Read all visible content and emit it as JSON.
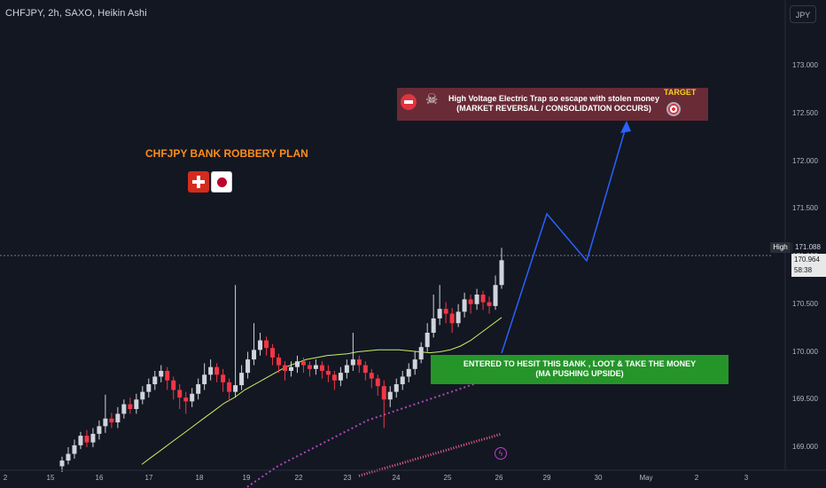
{
  "header": {
    "title": "CHFJPY, 2h, SAXO, Heikin Ashi",
    "currency_button": "JPY"
  },
  "annotations": {
    "plan_title": "CHFJPY BANK ROBBERY PLAN",
    "target_box_line1": "High Voltage Electric Trap so escape with stolen money",
    "target_box_line2": "(MARKET REVERSAL / CONSOLIDATION OCCURS)",
    "target_label": "TARGET",
    "entry_box_line1": "ENTERED TO HESIT THIS BANK , LOOT & TAKE THE MONEY",
    "entry_box_line2": "(MA PUSHING UPSIDE)"
  },
  "price_scale": {
    "high_tag": "High",
    "high_value": "171.088",
    "last_price": "170.964",
    "countdown": "58:38"
  },
  "colors": {
    "background": "#131722",
    "up_candle": "#d1d4dc",
    "down_candle": "#f23645",
    "ma_fast": "#c8f064",
    "ma_mid": "#b048b8",
    "ma_slow": "#f06090",
    "projection": "#2962ff",
    "target_box": "#692b36",
    "entry_box": "#25952a",
    "plan_title": "#ff8c1a"
  },
  "chart_data": {
    "type": "candlestick",
    "symbol": "CHFJPY",
    "timeframe": "2h",
    "source": "SAXO",
    "style": "Heikin Ashi",
    "y_axis": {
      "ticks": [
        169.0,
        169.5,
        170.0,
        170.5,
        171.0,
        171.5,
        172.0,
        172.5,
        173.0
      ],
      "tick_labels": [
        "169.000",
        "169.500",
        "170.000",
        "170.500",
        "171.000",
        "171.500",
        "172.000",
        "172.500",
        "173.000"
      ],
      "range": [
        168.8,
        173.4
      ]
    },
    "x_axis": {
      "tick_labels": [
        "2",
        "15",
        "16",
        "17",
        "18",
        "19",
        "22",
        "23",
        "24",
        "25",
        "26",
        "29",
        "30",
        "May",
        "2",
        "3"
      ]
    },
    "candles": [
      [
        168.8,
        168.86,
        168.74,
        168.9,
        "up"
      ],
      [
        168.86,
        168.93,
        168.82,
        169.0,
        "up"
      ],
      [
        168.93,
        169.02,
        168.88,
        169.08,
        "up"
      ],
      [
        169.02,
        169.12,
        168.98,
        169.16,
        "up"
      ],
      [
        169.12,
        169.05,
        169.0,
        169.18,
        "down"
      ],
      [
        169.05,
        169.14,
        169.0,
        169.2,
        "up"
      ],
      [
        169.14,
        169.22,
        169.08,
        169.28,
        "up"
      ],
      [
        169.22,
        169.3,
        169.15,
        169.55,
        "up"
      ],
      [
        169.3,
        169.26,
        169.2,
        169.36,
        "down"
      ],
      [
        169.26,
        169.35,
        169.2,
        169.42,
        "up"
      ],
      [
        169.35,
        169.45,
        169.3,
        169.5,
        "up"
      ],
      [
        169.45,
        169.4,
        169.35,
        169.52,
        "down"
      ],
      [
        169.4,
        169.5,
        169.35,
        169.56,
        "up"
      ],
      [
        169.5,
        169.58,
        169.45,
        169.64,
        "up"
      ],
      [
        169.58,
        169.66,
        169.52,
        169.72,
        "up"
      ],
      [
        169.66,
        169.74,
        169.6,
        169.8,
        "up"
      ],
      [
        169.74,
        169.8,
        169.68,
        169.86,
        "up"
      ],
      [
        169.8,
        169.7,
        169.6,
        169.84,
        "down"
      ],
      [
        169.7,
        169.6,
        169.5,
        169.74,
        "down"
      ],
      [
        169.6,
        169.52,
        169.4,
        169.66,
        "down"
      ],
      [
        169.52,
        169.48,
        169.35,
        169.58,
        "down"
      ],
      [
        169.48,
        169.56,
        169.42,
        169.62,
        "up"
      ],
      [
        169.56,
        169.66,
        169.5,
        169.72,
        "up"
      ],
      [
        169.66,
        169.76,
        169.6,
        169.88,
        "up"
      ],
      [
        169.76,
        169.84,
        169.7,
        169.92,
        "up"
      ],
      [
        169.84,
        169.76,
        169.68,
        169.88,
        "down"
      ],
      [
        169.76,
        169.68,
        169.58,
        169.82,
        "down"
      ],
      [
        169.68,
        169.58,
        169.48,
        169.72,
        "down"
      ],
      [
        169.58,
        169.65,
        169.52,
        170.7,
        "up"
      ],
      [
        169.65,
        169.78,
        169.6,
        169.86,
        "up"
      ],
      [
        169.78,
        169.92,
        169.72,
        170.0,
        "up"
      ],
      [
        169.92,
        170.02,
        169.86,
        170.3,
        "up"
      ],
      [
        170.02,
        170.12,
        169.96,
        170.2,
        "up"
      ],
      [
        170.12,
        170.04,
        169.96,
        170.16,
        "down"
      ],
      [
        170.04,
        169.94,
        169.86,
        170.08,
        "down"
      ],
      [
        169.94,
        169.86,
        169.78,
        169.98,
        "down"
      ],
      [
        169.86,
        169.8,
        169.7,
        169.9,
        "down"
      ],
      [
        169.8,
        169.84,
        169.74,
        169.9,
        "up"
      ],
      [
        169.84,
        169.9,
        169.78,
        169.96,
        "up"
      ],
      [
        169.9,
        169.86,
        169.78,
        169.94,
        "down"
      ],
      [
        169.86,
        169.82,
        169.74,
        169.9,
        "down"
      ],
      [
        169.82,
        169.86,
        169.76,
        169.92,
        "up"
      ],
      [
        169.86,
        169.8,
        169.72,
        169.9,
        "down"
      ],
      [
        169.8,
        169.76,
        169.68,
        169.86,
        "down"
      ],
      [
        169.76,
        169.7,
        169.6,
        169.8,
        "down"
      ],
      [
        169.7,
        169.78,
        169.64,
        169.84,
        "up"
      ],
      [
        169.78,
        169.86,
        169.72,
        169.92,
        "up"
      ],
      [
        169.86,
        169.92,
        169.8,
        170.2,
        "up"
      ],
      [
        169.92,
        169.86,
        169.78,
        169.96,
        "down"
      ],
      [
        169.86,
        169.78,
        169.7,
        169.9,
        "down"
      ],
      [
        169.78,
        169.72,
        169.62,
        169.82,
        "down"
      ],
      [
        169.72,
        169.64,
        169.54,
        169.76,
        "down"
      ],
      [
        169.64,
        169.5,
        169.2,
        169.7,
        "down"
      ],
      [
        169.5,
        169.58,
        169.42,
        169.64,
        "up"
      ],
      [
        169.58,
        169.66,
        169.52,
        169.72,
        "up"
      ],
      [
        169.66,
        169.74,
        169.6,
        169.8,
        "up"
      ],
      [
        169.74,
        169.82,
        169.68,
        169.88,
        "up"
      ],
      [
        169.82,
        169.92,
        169.76,
        170.0,
        "up"
      ],
      [
        169.92,
        170.05,
        169.88,
        170.1,
        "up"
      ],
      [
        170.05,
        170.2,
        170.0,
        170.3,
        "up"
      ],
      [
        170.2,
        170.35,
        170.15,
        170.6,
        "up"
      ],
      [
        170.35,
        170.45,
        170.28,
        170.7,
        "up"
      ],
      [
        170.45,
        170.4,
        170.3,
        170.52,
        "down"
      ],
      [
        170.4,
        170.3,
        170.2,
        170.46,
        "down"
      ],
      [
        170.3,
        170.42,
        170.26,
        170.5,
        "up"
      ],
      [
        170.42,
        170.55,
        170.36,
        170.62,
        "up"
      ],
      [
        170.55,
        170.5,
        170.4,
        170.6,
        "down"
      ],
      [
        170.5,
        170.6,
        170.44,
        170.66,
        "up"
      ],
      [
        170.6,
        170.52,
        170.44,
        170.64,
        "down"
      ],
      [
        170.52,
        170.48,
        170.4,
        170.58,
        "down"
      ],
      [
        170.48,
        170.7,
        170.44,
        170.8,
        "up"
      ],
      [
        170.7,
        170.96,
        170.66,
        171.09,
        "up"
      ]
    ],
    "moving_averages": [
      {
        "name": "MA fast",
        "values": [
          168.82,
          168.9,
          168.98,
          169.06,
          169.14,
          169.22,
          169.3,
          169.38,
          169.46,
          169.52,
          169.6,
          169.66,
          169.72,
          169.78,
          169.84,
          169.88,
          169.92,
          169.94,
          169.96,
          169.97,
          169.98,
          170.0,
          170.01,
          170.02,
          170.02,
          170.02,
          170.01,
          170.0,
          169.99,
          170.0,
          170.02,
          170.06,
          170.12,
          170.2,
          170.28,
          170.36
        ]
      },
      {
        "name": "MA mid",
        "values": [
          168.4,
          168.48,
          168.56,
          168.64,
          168.72,
          168.8,
          168.86,
          168.92,
          168.98,
          169.04,
          169.1,
          169.16,
          169.22,
          169.28,
          169.32,
          169.36,
          169.4,
          169.44,
          169.48,
          169.52,
          169.56,
          169.6,
          169.64,
          169.68,
          169.72,
          169.76
        ]
      },
      {
        "name": "MA slow",
        "values": [
          168.7,
          168.74,
          168.78,
          168.82,
          168.86,
          168.9,
          168.94,
          168.98,
          169.02,
          169.06,
          169.1,
          169.14
        ]
      }
    ],
    "projection_path": [
      [
        171.0,
        0
      ],
      [
        171.45,
        1
      ],
      [
        171.05,
        2
      ],
      [
        172.4,
        3
      ]
    ],
    "high_line": 171.088
  }
}
